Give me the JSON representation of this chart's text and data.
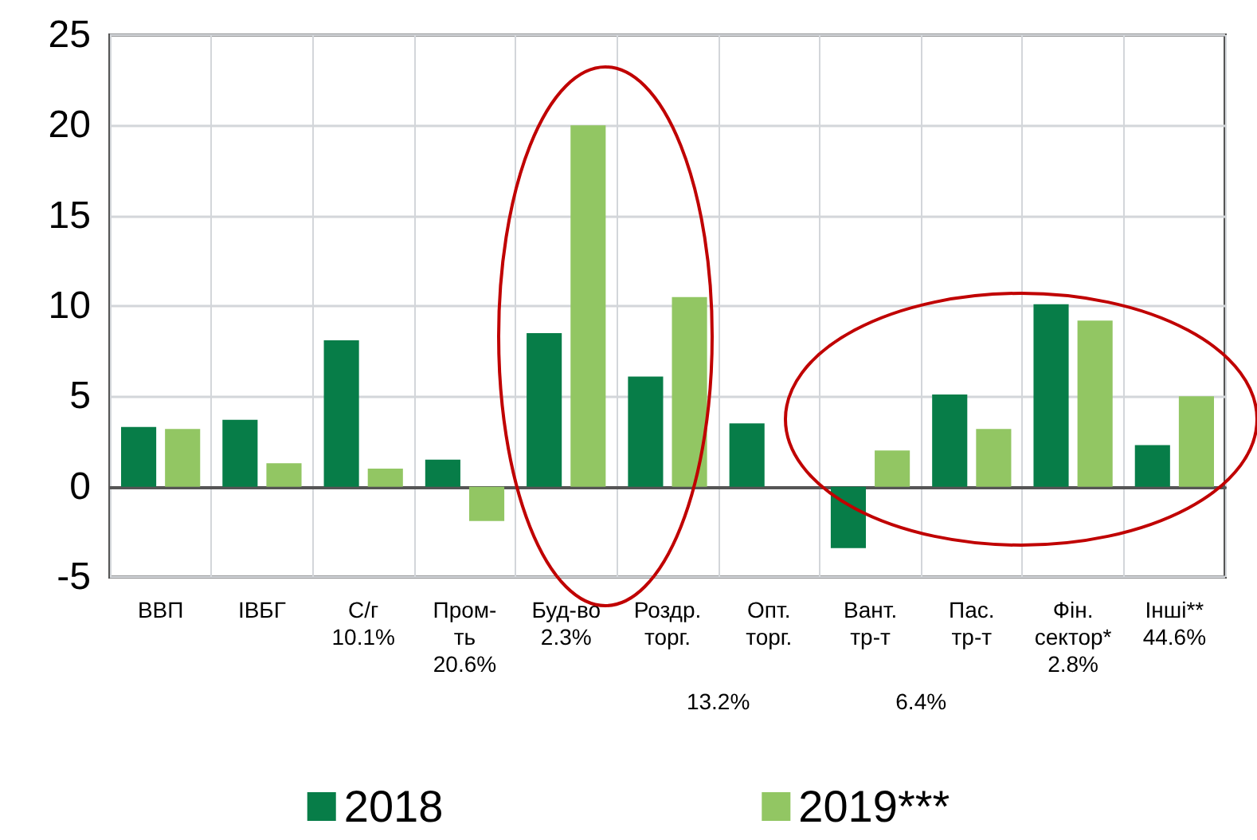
{
  "chart_data": {
    "type": "bar",
    "categories": [
      "ВВП",
      "ІВБГ",
      "С/г\n10.1%",
      "Пром-\nть\n20.6%",
      "Буд-во\n2.3%",
      "Роздр.\nторг.",
      "Опт.\nторг.",
      "Вант.\nтр-т",
      "Пас.\nтр-т",
      "Фін.\nсектор*\n2.8%",
      "Інші**\n44.6%"
    ],
    "series": [
      {
        "name": "2018",
        "color": "#077d48",
        "values": [
          3.3,
          3.7,
          8.1,
          1.5,
          8.5,
          6.1,
          3.5,
          -3.4,
          5.1,
          10.1,
          2.3
        ]
      },
      {
        "name": "2019***",
        "color": "#92c663",
        "values": [
          3.2,
          1.3,
          1.0,
          -1.9,
          20.0,
          10.5,
          null,
          2.0,
          3.2,
          9.2,
          5.0
        ]
      }
    ],
    "ylim": [
      -5,
      25
    ],
    "yticks": [
      -5,
      0,
      5,
      10,
      15,
      20,
      25
    ],
    "grid": true,
    "legend": "bottom",
    "annotations": [
      "13.2%",
      "6.4%"
    ]
  }
}
